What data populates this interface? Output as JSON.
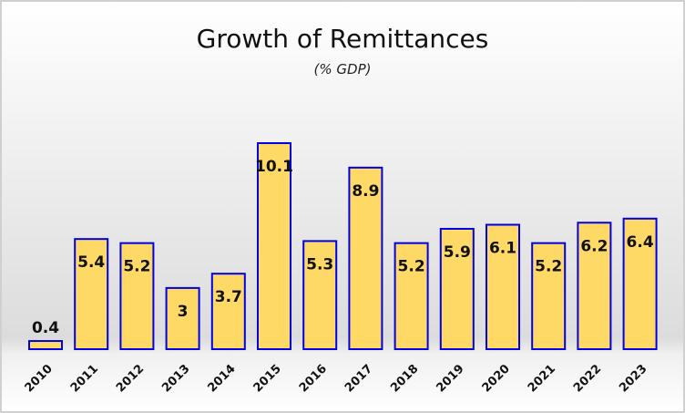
{
  "chart_data": {
    "type": "bar",
    "title": "Growth of Remittances",
    "subtitle": "(% GDP)",
    "xlabel": "",
    "ylabel": "",
    "categories": [
      "2010",
      "2011",
      "2012",
      "2013",
      "2014",
      "2015",
      "2016",
      "2017",
      "2018",
      "2019",
      "2020",
      "2021",
      "2022",
      "2023"
    ],
    "values": [
      0.4,
      5.4,
      5.2,
      3,
      3.7,
      10.1,
      5.3,
      8.9,
      5.2,
      5.9,
      6.1,
      5.2,
      6.2,
      6.4
    ],
    "ylim": [
      0,
      10.1
    ],
    "grid": false,
    "legend": "none",
    "data_labels": true,
    "colors": {
      "bar_fill": "#FFD966",
      "bar_stroke": "#0000E6"
    }
  }
}
